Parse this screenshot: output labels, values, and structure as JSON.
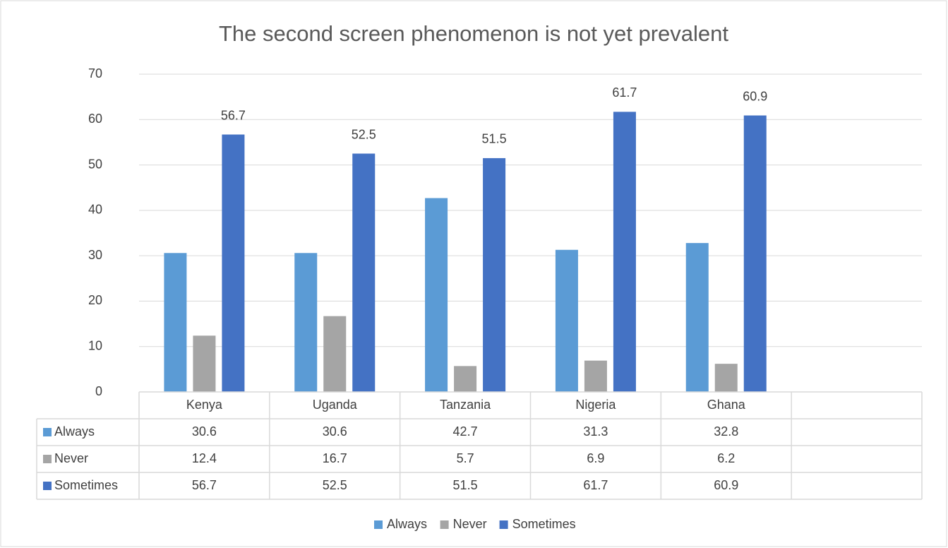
{
  "chart_data": {
    "type": "bar",
    "title": "The second screen phenomenon is not yet prevalent",
    "categories": [
      "Kenya",
      "Uganda",
      "Tanzania",
      "Nigeria",
      "Ghana",
      null
    ],
    "series": [
      {
        "name": "Always",
        "color": "#5b9bd5",
        "values": [
          30.6,
          30.6,
          42.7,
          31.3,
          32.8,
          null
        ]
      },
      {
        "name": "Never",
        "color": "#a5a5a5",
        "values": [
          12.4,
          16.7,
          5.7,
          6.9,
          6.2,
          null
        ]
      },
      {
        "name": "Sometimes",
        "color": "#4472c4",
        "values": [
          56.7,
          52.5,
          51.5,
          61.7,
          60.9,
          null
        ],
        "data_labels": true
      }
    ],
    "ylim": [
      0,
      70
    ],
    "yticks": [
      0,
      10,
      20,
      30,
      40,
      50,
      60,
      70
    ],
    "grid": true,
    "data_table": true,
    "legend": "bottom"
  }
}
